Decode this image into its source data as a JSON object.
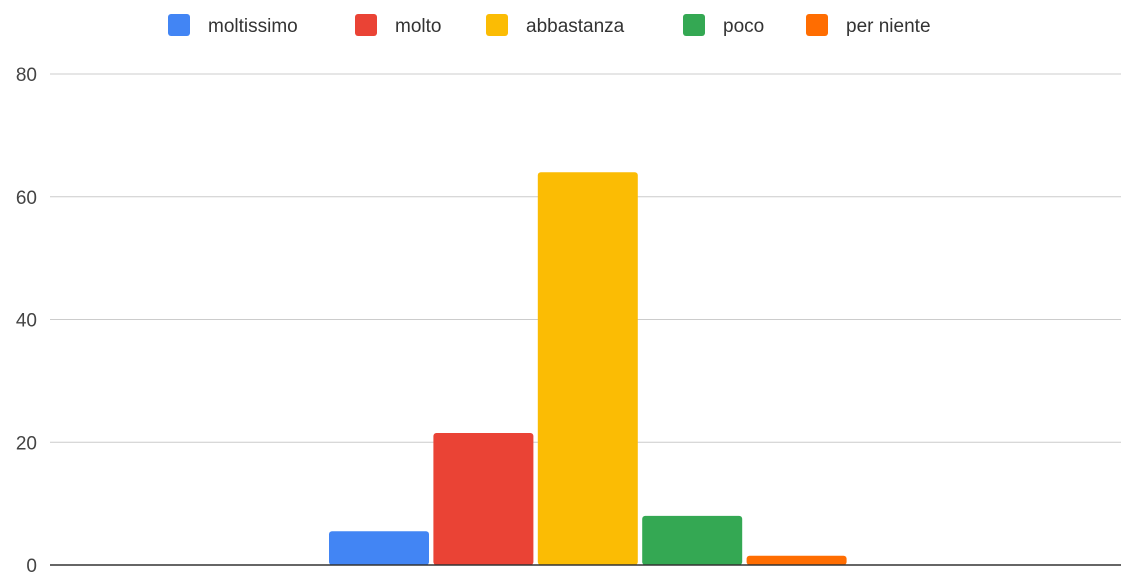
{
  "chart_data": {
    "type": "bar",
    "title": "",
    "xlabel": "",
    "ylabel": "",
    "ylim": [
      0,
      80
    ],
    "yticks": [
      0,
      20,
      40,
      60,
      80
    ],
    "grid": true,
    "legend_position": "top-center",
    "categories": [
      ""
    ],
    "series": [
      {
        "name": "moltissimo",
        "color": "#4285F4",
        "values": [
          5.5
        ]
      },
      {
        "name": "molto",
        "color": "#EA4335",
        "values": [
          21.5
        ]
      },
      {
        "name": "abbastanza",
        "color": "#FBBC04",
        "values": [
          64
        ]
      },
      {
        "name": "poco",
        "color": "#34A853",
        "values": [
          8
        ]
      },
      {
        "name": "per niente",
        "color": "#FF6D01",
        "values": [
          1.5
        ]
      }
    ]
  }
}
